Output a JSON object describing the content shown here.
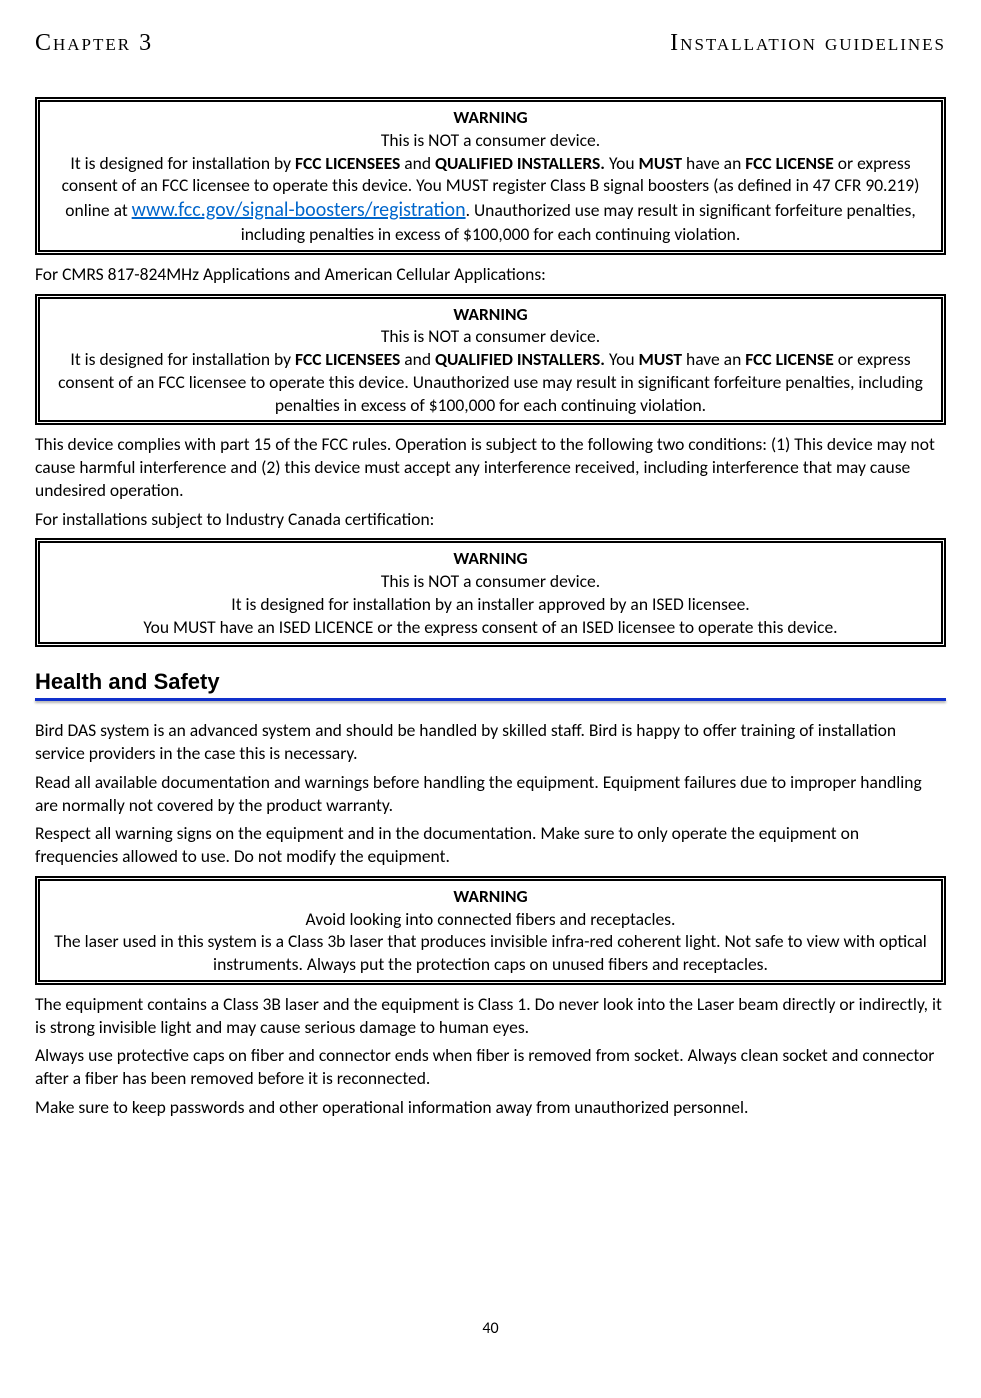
{
  "header": {
    "left": "Chapter 3",
    "right": "Installation guidelines"
  },
  "warning1": {
    "title": "WARNING",
    "line1": "This is NOT a consumer device.",
    "line2a": "It is designed for installation by ",
    "bold1": "FCC LICENSEES",
    "line2b": " and ",
    "bold2": "QUALIFIED INSTALLERS.",
    "line2c": " You ",
    "bold3": "MUST",
    "line2d": " have an ",
    "bold4": "FCC LICENSE",
    "line2e": " or express consent of an FCC licensee to operate this device. You MUST register Class B signal boosters (as defined in 47 CFR 90.219) online at ",
    "link": "www.fcc.gov/signal-boosters/registration",
    "line2f": ". Unauthorized use may result in significant forfeiture penalties, including penalties in excess of $100,000 for each continuing violation."
  },
  "intertext1": "For CMRS 817-824MHz Applications and American Cellular Applications:",
  "warning2": {
    "title": "WARNING",
    "line1": "This is NOT a consumer device.",
    "line2a": "It is designed for installation by ",
    "bold1": "FCC LICENSEES",
    "line2b": " and ",
    "bold2": "QUALIFIED INSTALLERS.",
    "line2c": " You ",
    "bold3": "MUST",
    "line2d": " have an ",
    "bold4": "FCC LICENSE",
    "line2e": " or express consent of an FCC licensee to operate this device. Unauthorized use may result in significant forfeiture penalties, including penalties in excess of $100,000 for each continuing violation."
  },
  "intertext2a": "This device complies with part 15 of the FCC rules. Operation is subject to the following two conditions: (1) This device may not cause harmful interference and (2) this device must accept any interference received, including interference that may cause undesired operation.",
  "intertext2b": "For installations subject to Industry Canada certification:",
  "warning3": {
    "title": "WARNING",
    "line1": "This is NOT a consumer device.",
    "line2": "It is designed for installation by an installer approved by an ISED licensee.",
    "line3": "You MUST have an ISED LICENCE or the express consent of an ISED licensee to operate this device."
  },
  "section_heading": "Health and Safety",
  "para1": "Bird DAS system is an advanced system and should be handled by skilled staff. Bird is happy to offer training of installation service providers in the case this is necessary.",
  "para2": "Read all available documentation and warnings before handling the equipment. Equipment failures due to improper handling are normally not covered by the product warranty.",
  "para3": "Respect all warning signs on the equipment and in the documentation. Make sure to only operate the equipment on frequencies allowed to use. Do not modify the equipment.",
  "warning4": {
    "title": "WARNING",
    "line1": "Avoid looking into connected fibers and receptacles.",
    "line2": "The laser used in this system is a Class 3b laser that produces invisible infra-red coherent light. Not safe to view with optical instruments. Always put the protection caps on unused fibers and receptacles."
  },
  "para4": " The equipment contains a Class 3B laser and the equipment is Class 1. Do never look into the Laser beam directly or indirectly, it is strong invisible light and may cause serious damage to human eyes.",
  "para5": "Always use protective caps on fiber and connector ends when fiber is removed from socket. Always clean socket and connector after a fiber has been removed before it is reconnected.",
  "para6": "Make sure to keep passwords and other operational information away from unauthorized personnel.",
  "page_number": "40",
  "colors": {
    "rule": "#1030cc",
    "link": "#0066cc",
    "text": "#000000",
    "bg": "#ffffff"
  }
}
